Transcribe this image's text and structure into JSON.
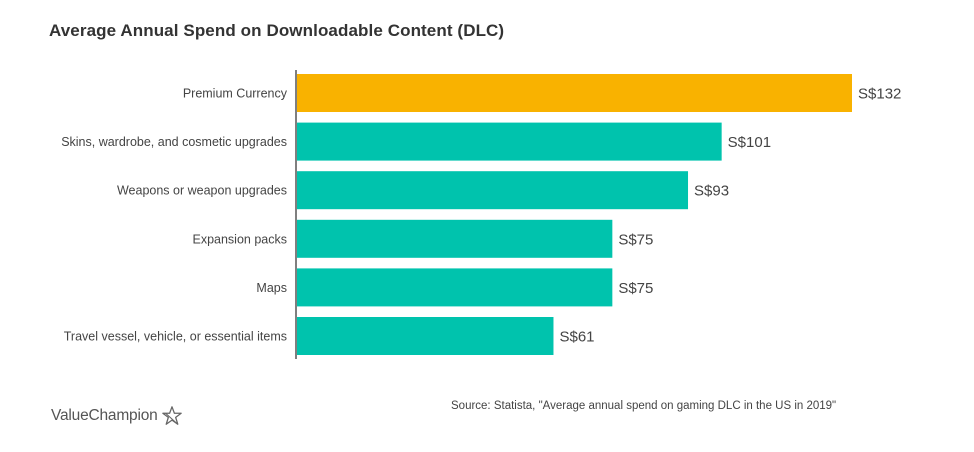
{
  "chart_data": {
    "type": "bar",
    "orientation": "horizontal",
    "title": "Average Annual Spend on Downloadable Content (DLC)",
    "categories": [
      "Premium Currency",
      "Skins, wardrobe, and cosmetic upgrades",
      "Weapons or weapon upgrades",
      "Expansion packs",
      "Maps",
      "Travel vessel, vehicle, or essential items"
    ],
    "values": [
      132,
      101,
      93,
      75,
      75,
      61
    ],
    "value_labels": [
      "S$132",
      "S$101",
      "S$93",
      "S$75",
      "S$75",
      "S$61"
    ],
    "unit": "S$",
    "highlight_index": 0,
    "colors": {
      "highlight": "#F9B200",
      "default": "#00C3AD",
      "axis": "#555555"
    },
    "xlabel": "",
    "ylabel": "",
    "xlim": [
      0,
      132
    ],
    "grid": false,
    "legend": "none"
  },
  "footer": {
    "source": "Source: Statista, \"Average annual spend on gaming DLC in the US in 2019\"",
    "brand": "ValueChampion",
    "brand_icon": "star-outline-icon"
  }
}
